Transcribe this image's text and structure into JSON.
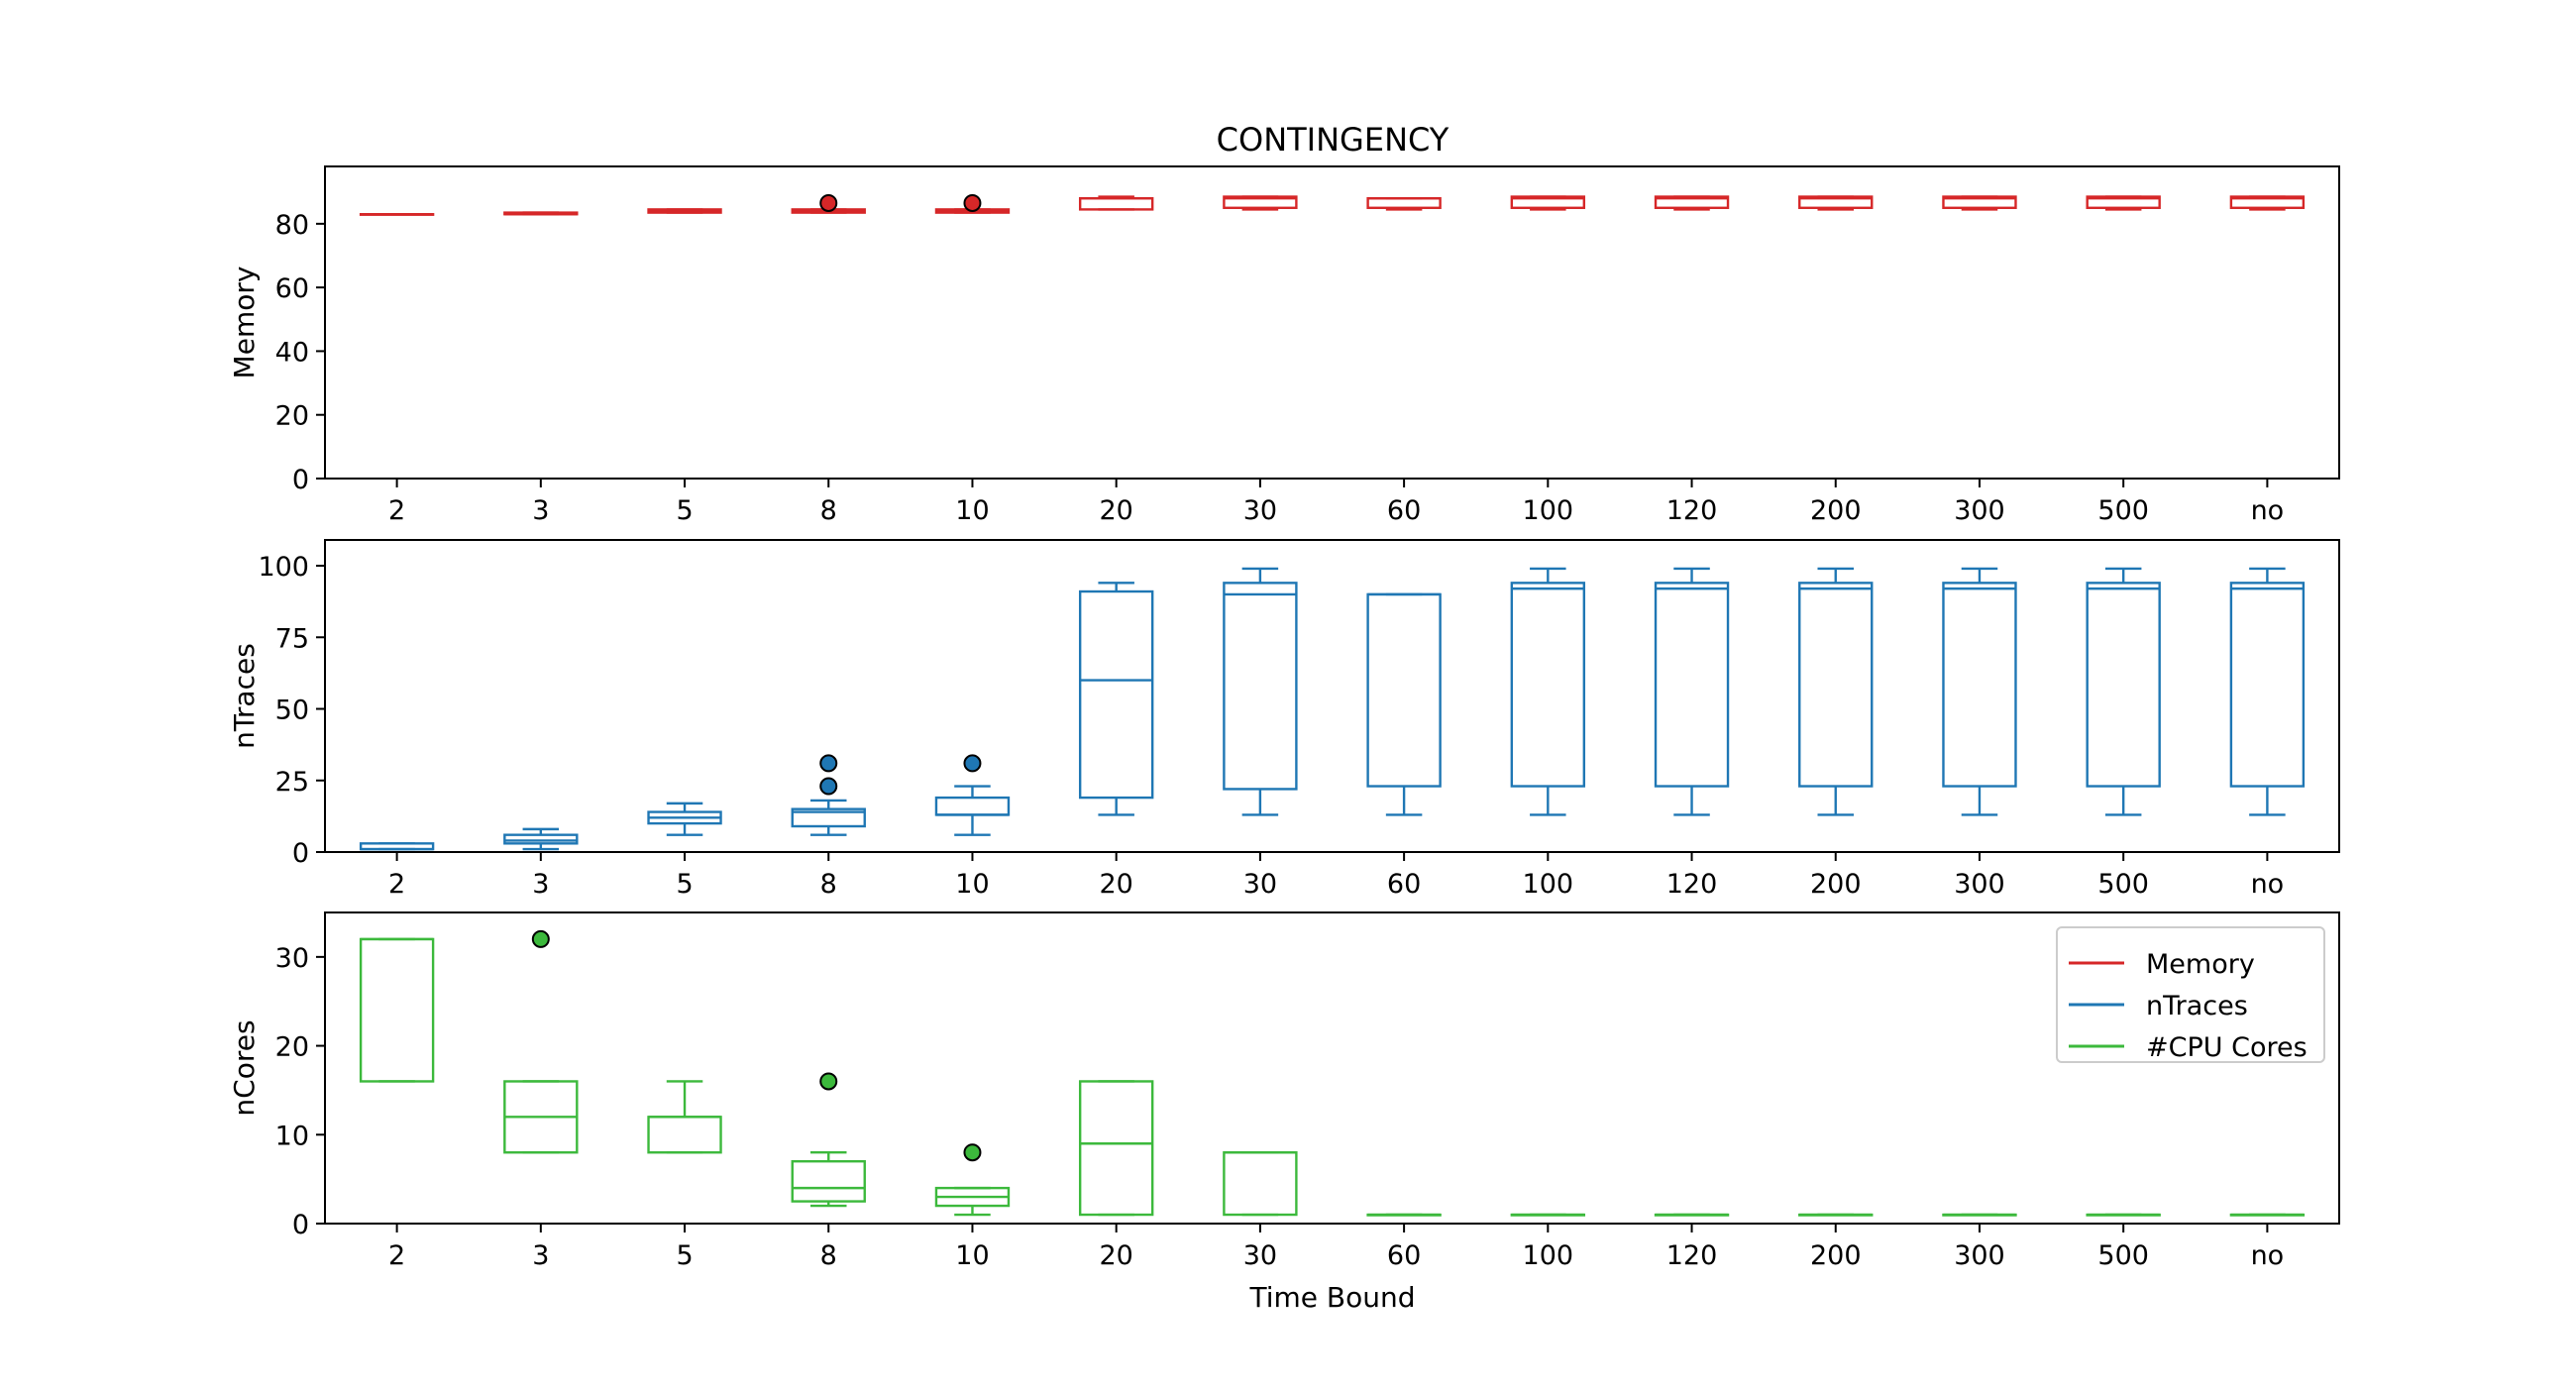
{
  "chart_data": {
    "type": "box",
    "title": "CONTINGENCY",
    "xlabel": "Time Bound",
    "categories": [
      "2",
      "3",
      "5",
      "8",
      "10",
      "20",
      "30",
      "60",
      "100",
      "120",
      "200",
      "300",
      "500",
      "no"
    ],
    "legend": {
      "placement": "top-right",
      "entries": [
        {
          "label": "Memory",
          "color": "#d62728"
        },
        {
          "label": "nTraces",
          "color": "#1f77b4"
        },
        {
          "label": "#CPU Cores",
          "color": "#3cb93c"
        }
      ]
    },
    "panels": [
      {
        "ylabel": "Memory",
        "ylim": [
          0,
          98
        ],
        "yticks": [
          0,
          20,
          40,
          60,
          80
        ],
        "color": "#d62728",
        "boxes": [
          {
            "whislo": 83,
            "q1": 83,
            "med": 83,
            "q3": 83,
            "whishi": 83,
            "fliers": []
          },
          {
            "whislo": 83,
            "q1": 83,
            "med": 83,
            "q3": 83.5,
            "whishi": 83.5,
            "fliers": []
          },
          {
            "whislo": 83.5,
            "q1": 83.5,
            "med": 84,
            "q3": 84.5,
            "whishi": 84.5,
            "fliers": []
          },
          {
            "whislo": 83.5,
            "q1": 83.5,
            "med": 84,
            "q3": 84.5,
            "whishi": 84.5,
            "fliers": [
              86.5
            ]
          },
          {
            "whislo": 83.5,
            "q1": 83.5,
            "med": 84,
            "q3": 84.5,
            "whishi": 84.5,
            "fliers": [
              86.5
            ]
          },
          {
            "whislo": 84.5,
            "q1": 84.5,
            "med": 88,
            "q3": 88,
            "whishi": 88.5,
            "fliers": []
          },
          {
            "whislo": 84.5,
            "q1": 85,
            "med": 88,
            "q3": 88.5,
            "whishi": 88.5,
            "fliers": []
          },
          {
            "whislo": 84.5,
            "q1": 85,
            "med": 88,
            "q3": 88,
            "whishi": 88,
            "fliers": []
          },
          {
            "whislo": 84.5,
            "q1": 85,
            "med": 88,
            "q3": 88.5,
            "whishi": 88.5,
            "fliers": []
          },
          {
            "whislo": 84.5,
            "q1": 85,
            "med": 88,
            "q3": 88.5,
            "whishi": 88.5,
            "fliers": []
          },
          {
            "whislo": 84.5,
            "q1": 85,
            "med": 88,
            "q3": 88.5,
            "whishi": 88.5,
            "fliers": []
          },
          {
            "whislo": 84.5,
            "q1": 85,
            "med": 88,
            "q3": 88.5,
            "whishi": 88.5,
            "fliers": []
          },
          {
            "whislo": 84.5,
            "q1": 85,
            "med": 88,
            "q3": 88.5,
            "whishi": 88.5,
            "fliers": []
          },
          {
            "whislo": 84.5,
            "q1": 85,
            "med": 88,
            "q3": 88.5,
            "whishi": 88.5,
            "fliers": []
          }
        ]
      },
      {
        "ylabel": "nTraces",
        "ylim": [
          0,
          109
        ],
        "yticks": [
          0,
          25,
          50,
          75,
          100
        ],
        "color": "#1f77b4",
        "boxes": [
          {
            "whislo": 1,
            "q1": 1,
            "med": 1,
            "q3": 3,
            "whishi": 3,
            "fliers": []
          },
          {
            "whislo": 1,
            "q1": 3,
            "med": 4,
            "q3": 6,
            "whishi": 8,
            "fliers": []
          },
          {
            "whislo": 6,
            "q1": 10,
            "med": 12,
            "q3": 14,
            "whishi": 17,
            "fliers": []
          },
          {
            "whislo": 6,
            "q1": 9,
            "med": 14,
            "q3": 15,
            "whishi": 18,
            "fliers": [
              23,
              31
            ]
          },
          {
            "whislo": 6,
            "q1": 13,
            "med": 13,
            "q3": 19,
            "whishi": 23,
            "fliers": [
              31
            ]
          },
          {
            "whislo": 13,
            "q1": 19,
            "med": 60,
            "q3": 91,
            "whishi": 94,
            "fliers": []
          },
          {
            "whislo": 13,
            "q1": 22,
            "med": 90,
            "q3": 94,
            "whishi": 99,
            "fliers": []
          },
          {
            "whislo": 13,
            "q1": 23,
            "med": 90,
            "q3": 90,
            "whishi": 90,
            "fliers": []
          },
          {
            "whislo": 13,
            "q1": 23,
            "med": 92,
            "q3": 94,
            "whishi": 99,
            "fliers": []
          },
          {
            "whislo": 13,
            "q1": 23,
            "med": 92,
            "q3": 94,
            "whishi": 99,
            "fliers": []
          },
          {
            "whislo": 13,
            "q1": 23,
            "med": 92,
            "q3": 94,
            "whishi": 99,
            "fliers": []
          },
          {
            "whislo": 13,
            "q1": 23,
            "med": 92,
            "q3": 94,
            "whishi": 99,
            "fliers": []
          },
          {
            "whislo": 13,
            "q1": 23,
            "med": 92,
            "q3": 94,
            "whishi": 99,
            "fliers": []
          },
          {
            "whislo": 13,
            "q1": 23,
            "med": 92,
            "q3": 94,
            "whishi": 99,
            "fliers": []
          }
        ]
      },
      {
        "ylabel": "nCores",
        "ylim": [
          0,
          35
        ],
        "yticks": [
          0,
          10,
          20,
          30
        ],
        "color": "#3cb93c",
        "boxes": [
          {
            "whislo": 16,
            "q1": 16,
            "med": 32,
            "q3": 32,
            "whishi": 32,
            "fliers": []
          },
          {
            "whislo": 8,
            "q1": 8,
            "med": 12,
            "q3": 16,
            "whishi": 16,
            "fliers": [
              32
            ]
          },
          {
            "whislo": 8,
            "q1": 8,
            "med": 12,
            "q3": 12,
            "whishi": 16,
            "fliers": []
          },
          {
            "whislo": 2,
            "q1": 2.5,
            "med": 4,
            "q3": 7,
            "whishi": 8,
            "fliers": [
              16
            ]
          },
          {
            "whislo": 1,
            "q1": 2,
            "med": 3,
            "q3": 4,
            "whishi": 4,
            "fliers": [
              8
            ]
          },
          {
            "whislo": 1,
            "q1": 1,
            "med": 9,
            "q3": 16,
            "whishi": 16,
            "fliers": []
          },
          {
            "whislo": 1,
            "q1": 1,
            "med": 8,
            "q3": 8,
            "whishi": 8,
            "fliers": []
          },
          {
            "whislo": 1,
            "q1": 1,
            "med": 1,
            "q3": 1,
            "whishi": 1,
            "fliers": []
          },
          {
            "whislo": 1,
            "q1": 1,
            "med": 1,
            "q3": 1,
            "whishi": 1,
            "fliers": []
          },
          {
            "whislo": 1,
            "q1": 1,
            "med": 1,
            "q3": 1,
            "whishi": 1,
            "fliers": []
          },
          {
            "whislo": 1,
            "q1": 1,
            "med": 1,
            "q3": 1,
            "whishi": 1,
            "fliers": []
          },
          {
            "whislo": 1,
            "q1": 1,
            "med": 1,
            "q3": 1,
            "whishi": 1,
            "fliers": []
          },
          {
            "whislo": 1,
            "q1": 1,
            "med": 1,
            "q3": 1,
            "whishi": 1,
            "fliers": []
          },
          {
            "whislo": 1,
            "q1": 1,
            "med": 1,
            "q3": 1,
            "whishi": 1,
            "fliers": []
          }
        ]
      }
    ]
  }
}
